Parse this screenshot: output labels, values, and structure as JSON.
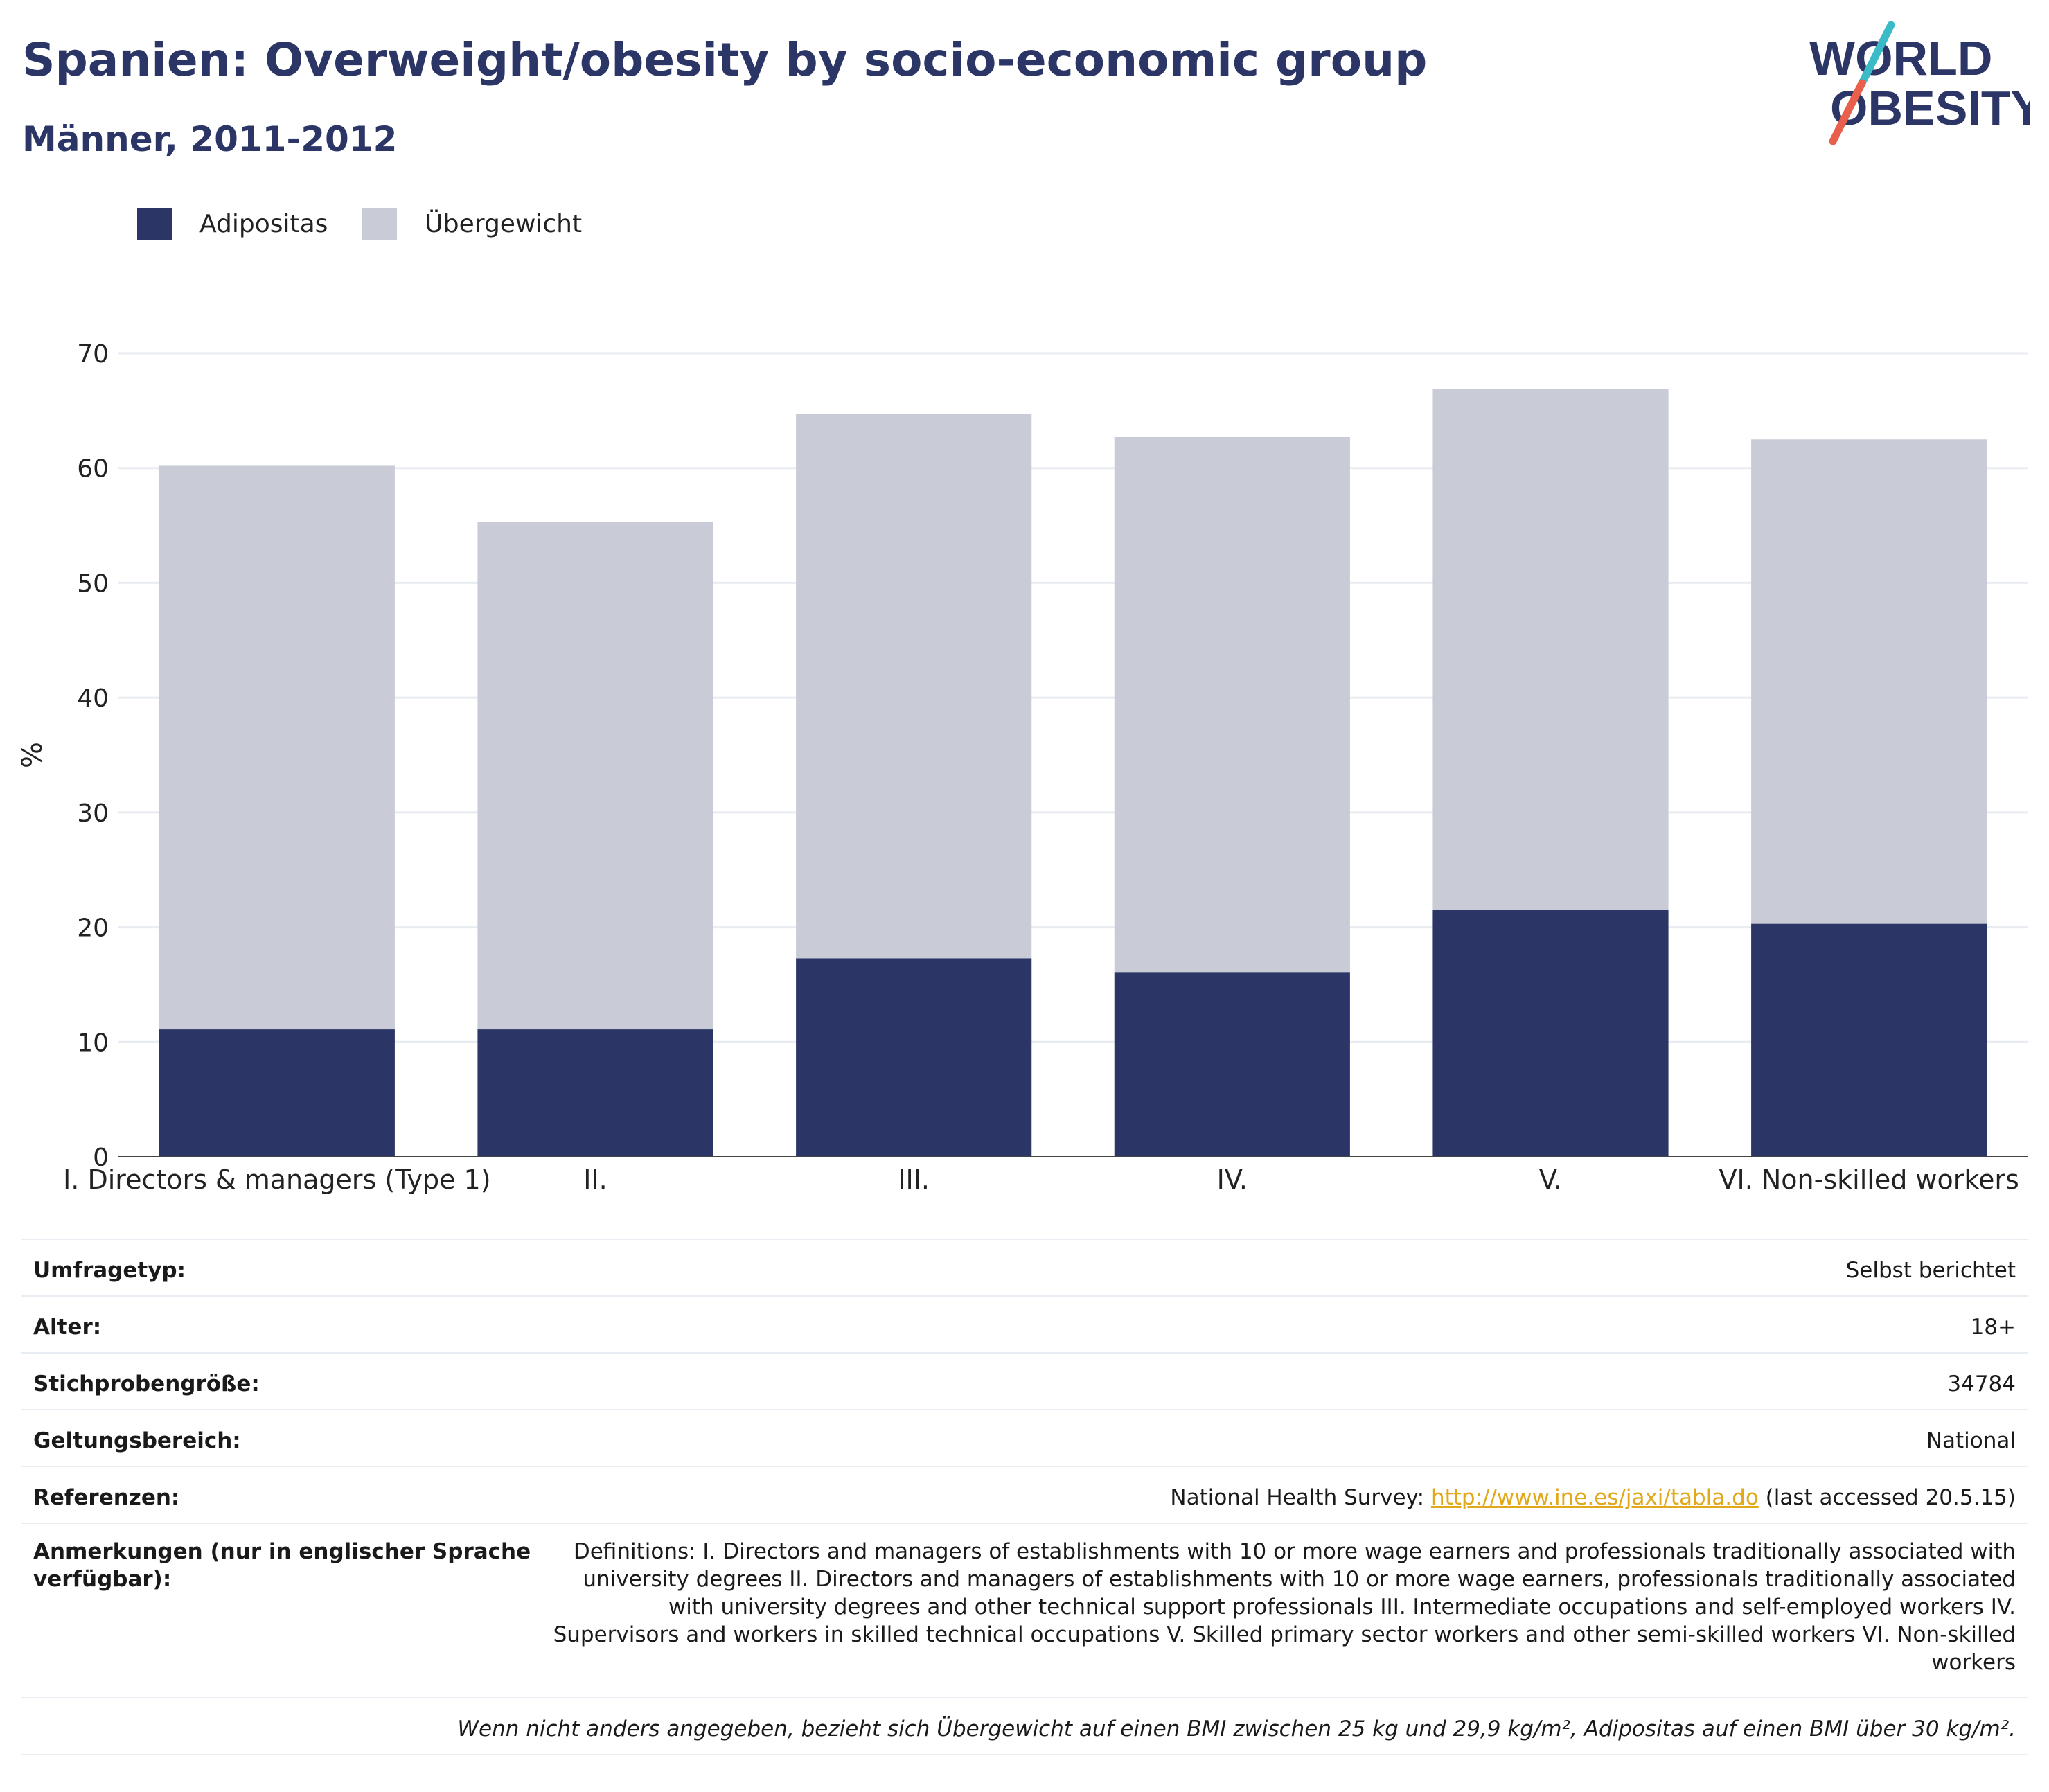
{
  "header": {
    "title": "Spanien: Overweight/obesity by socio-economic group",
    "subtitle": "Männer, 2011-2012"
  },
  "logo": {
    "line1": "WORLD",
    "line2": "OBESITY",
    "colors": {
      "text": "#2b3666",
      "slash_top": "#3bbbc8",
      "slash_bottom": "#e8604c"
    }
  },
  "legend": {
    "items": [
      {
        "label": "Adipositas",
        "color": "#2b3666"
      },
      {
        "label": "Übergewicht",
        "color": "#c9cbd7"
      }
    ]
  },
  "chart_data": {
    "type": "bar",
    "stacked": true,
    "categories": [
      "I. Directors & managers (Type 1)",
      "II.",
      "III.",
      "IV.",
      "V.",
      "VI. Non-skilled workers"
    ],
    "series": [
      {
        "name": "Adipositas",
        "color": "#2b3666",
        "values": [
          11.1,
          11.1,
          17.3,
          16.1,
          21.5,
          20.3
        ]
      },
      {
        "name": "Übergewicht",
        "color": "#c9cbd7",
        "values": [
          49.1,
          44.2,
          47.4,
          46.6,
          45.4,
          42.2
        ]
      }
    ],
    "ylabel": "%",
    "ylim": [
      0,
      70
    ],
    "yticks": [
      0,
      10,
      20,
      30,
      40,
      50,
      60,
      70
    ],
    "grid": true
  },
  "meta": {
    "survey_type_label": "Umfragetyp:",
    "survey_type_value": "Selbst berichtet",
    "age_label": "Alter:",
    "age_value": "18+",
    "sample_label": "Stichprobengröße:",
    "sample_value": "34784",
    "scope_label": "Geltungsbereich:",
    "scope_value": "National",
    "refs_label": "Referenzen:",
    "refs_prefix": "National Health Survey: ",
    "refs_link": "http://www.ine.es/jaxi/tabla.do",
    "refs_suffix": " (last accessed 20.5.15)",
    "notes_label": "Anmerkungen (nur in englischer Sprache verfügbar):",
    "notes_value": "Definitions: I. Directors and managers of establishments with 10 or more wage earners and professionals traditionally associated with university degrees II. Directors and managers of establishments with 10 or more wage earners, professionals traditionally associated with university degrees and other technical support professionals III. Intermediate occupations and self-employed workers IV. Supervisors and workers in skilled technical occupations V. Skilled primary sector workers and other semi-skilled workers VI. Non-skilled workers",
    "footnote": "Wenn nicht anders angegeben, bezieht sich Übergewicht auf einen BMI zwischen 25 kg und 29,9 kg/m², Adipositas auf einen BMI über 30 kg/m²."
  }
}
